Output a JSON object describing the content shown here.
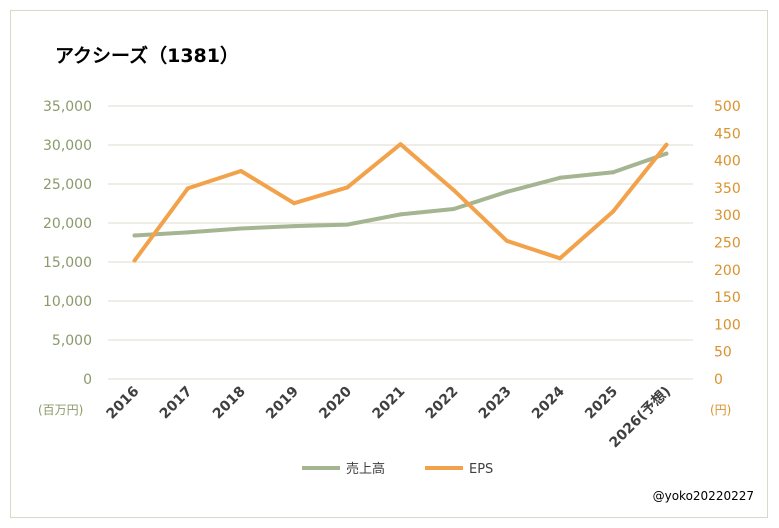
{
  "chart_data": {
    "type": "line",
    "title": "アクシーズ（1381）",
    "categories": [
      "2016",
      "2017",
      "2018",
      "2019",
      "2020",
      "2021",
      "2022",
      "2023",
      "2024",
      "2025",
      "2026(予想)"
    ],
    "series": [
      {
        "name": "売上高",
        "axis": "left",
        "color": "#a5b592",
        "values": [
          18400,
          18800,
          19300,
          19600,
          19800,
          21100,
          21800,
          24000,
          25800,
          26500,
          28900
        ]
      },
      {
        "name": "EPS",
        "axis": "right",
        "color": "#f2a24a",
        "values": [
          217,
          349,
          381,
          322,
          351,
          430,
          346,
          253,
          221,
          307,
          429
        ]
      }
    ],
    "y_left": {
      "unit": "(百万円)",
      "min": 0,
      "max": 35000,
      "step": 5000,
      "ticks": [
        "0",
        "5,000",
        "10,000",
        "15,000",
        "20,000",
        "25,000",
        "30,000",
        "35,000"
      ]
    },
    "y_right": {
      "unit": "(円)",
      "min": 0,
      "max": 500,
      "step": 50,
      "ticks": [
        "0",
        "50",
        "100",
        "150",
        "200",
        "250",
        "300",
        "350",
        "400",
        "450",
        "500"
      ]
    },
    "grid": true,
    "legend_position": "bottom"
  },
  "credit": "@yoko20220227"
}
